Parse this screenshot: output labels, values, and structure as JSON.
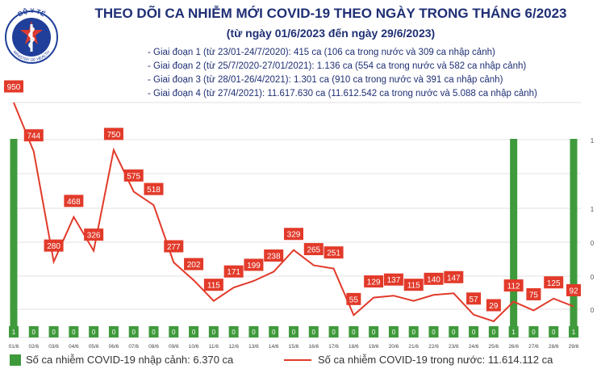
{
  "header": {
    "logo_text_top": "BỘ Y TẾ",
    "logo_text_bottom": "MINISTRY OF HEALTH",
    "title": "THEO DÕI CA NHIỄM MỚI COVID-19 THEO NGÀY TRONG THÁNG 6/2023",
    "subtitle": "(từ ngày 01/6/2023 đến ngày 29/6/2023)"
  },
  "phases": [
    "- Giai đoạn 1 (từ 23/01-24/7/2020): 415 ca (106 ca trong nước và 309 ca nhập cảnh)",
    "- Giai đoạn 2 (từ 25/7/2020-27/01/2021): 1.136 ca (554 ca trong nước và 582 ca nhập cảnh)",
    "- Giai đoạn 3 (từ 28/01-26/4/2021): 1.301 ca (910 ca trong nước và 391 ca nhập cảnh)",
    "- Giai đoạn 4 (từ 27/4/2021): 11.617.630 ca (11.612.542 ca trong nước và 5.088 ca nhập cảnh)"
  ],
  "chart_data": {
    "type": "bar+line",
    "categories": [
      "01/6",
      "02/6",
      "03/6",
      "04/6",
      "05/6",
      "06/6",
      "07/6",
      "08/6",
      "09/6",
      "10/6",
      "11/6",
      "12/6",
      "13/6",
      "14/6",
      "15/6",
      "16/6",
      "17/6",
      "18/6",
      "19/6",
      "20/6",
      "21/6",
      "22/6",
      "23/6",
      "24/6",
      "25/6",
      "26/6",
      "27/6",
      "28/6",
      "29/6"
    ],
    "series": [
      {
        "name": "Số ca nhiễm COVID-19 nhập cảnh: 6.370 ca",
        "type": "bar",
        "values": [
          1,
          0,
          0,
          0,
          0,
          0,
          0,
          0,
          0,
          0,
          0,
          0,
          0,
          0,
          0,
          0,
          0,
          0,
          0,
          0,
          0,
          0,
          0,
          0,
          0,
          1,
          0,
          0,
          1
        ],
        "labels": [
          "1",
          "0",
          "0",
          "0",
          "0",
          "0",
          "0",
          "0",
          "0",
          "0",
          "0",
          "0",
          "0",
          "0",
          "0",
          "0",
          "0",
          "0",
          "0",
          "0",
          "0",
          "0",
          "0",
          "0",
          "0",
          "1",
          "0",
          "0",
          "1"
        ]
      },
      {
        "name": "Số ca nhiễm COVID-19 trong nước: 11.614.112 ca",
        "type": "line",
        "values": [
          950,
          744,
          280,
          468,
          326,
          750,
          575,
          518,
          277,
          202,
          115,
          171,
          199,
          238,
          329,
          265,
          251,
          55,
          129,
          137,
          115,
          140,
          147,
          57,
          29,
          112,
          75,
          125,
          92
        ]
      }
    ],
    "right_axis_fragments": [
      "1",
      "1",
      "0",
      "0",
      "0"
    ],
    "colors": {
      "bar": "#3f9a3c",
      "line": "#e23a2a",
      "title": "#1f2f75"
    },
    "legend_position": "bottom"
  }
}
